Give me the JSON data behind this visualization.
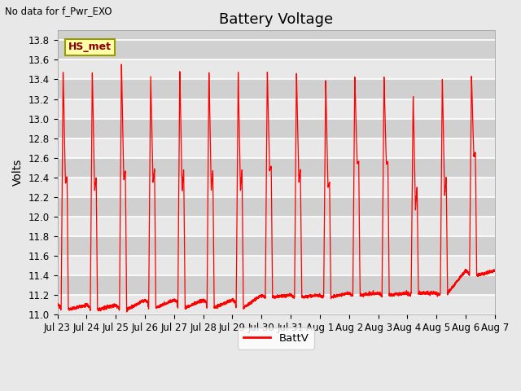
{
  "title": "Battery Voltage",
  "ylabel": "Volts",
  "no_data_label": "No data for f_Pwr_EXO",
  "hs_met_label": "HS_met",
  "legend_label": "BattV",
  "line_color": "red",
  "ylim": [
    11.0,
    13.9
  ],
  "bg_color": "#e8e8e8",
  "plot_bg_light": "#e8e8e8",
  "plot_bg_dark": "#d0d0d0",
  "grid_color": "white",
  "title_fontsize": 13,
  "axis_label_fontsize": 10,
  "tick_fontsize": 8.5,
  "x_tick_labels": [
    "Jul 23",
    "Jul 24",
    "Jul 25",
    "Jul 26",
    "Jul 27",
    "Jul 28",
    "Jul 29",
    "Jul 30",
    "Jul 31",
    "Aug 1",
    "Aug 2",
    "Aug 3",
    "Aug 4",
    "Aug 5",
    "Aug 6",
    "Aug 7"
  ],
  "yticks": [
    11.0,
    11.2,
    11.4,
    11.6,
    11.8,
    12.0,
    12.2,
    12.4,
    12.6,
    12.8,
    13.0,
    13.2,
    13.4,
    13.6,
    13.8
  ],
  "n_days": 15,
  "cycles": [
    {
      "peak": 13.47,
      "dip": 12.35,
      "bump": 12.4,
      "min": 11.1,
      "trough": 11.05
    },
    {
      "peak": 13.47,
      "dip": 12.27,
      "bump": 12.4,
      "min": 11.1,
      "trough": 11.05
    },
    {
      "peak": 13.55,
      "dip": 12.38,
      "bump": 12.47,
      "min": 11.1,
      "trough": 11.05
    },
    {
      "peak": 13.42,
      "dip": 12.35,
      "bump": 12.47,
      "min": 11.15,
      "trough": 11.07
    },
    {
      "peak": 13.47,
      "dip": 12.27,
      "bump": 12.47,
      "min": 11.15,
      "trough": 11.07
    },
    {
      "peak": 13.47,
      "dip": 12.27,
      "bump": 12.47,
      "min": 11.15,
      "trough": 11.07
    },
    {
      "peak": 13.47,
      "dip": 12.27,
      "bump": 12.47,
      "min": 11.15,
      "trough": 11.07
    },
    {
      "peak": 13.47,
      "dip": 12.48,
      "bump": 12.5,
      "min": 11.2,
      "trough": 11.18
    },
    {
      "peak": 13.47,
      "dip": 12.35,
      "bump": 12.48,
      "min": 11.2,
      "trough": 11.18
    },
    {
      "peak": 13.4,
      "dip": 12.3,
      "bump": 12.35,
      "min": 11.2,
      "trough": 11.18
    },
    {
      "peak": 13.42,
      "dip": 12.55,
      "bump": 12.55,
      "min": 11.22,
      "trough": 11.2
    },
    {
      "peak": 13.42,
      "dip": 12.55,
      "bump": 12.55,
      "min": 11.22,
      "trough": 11.2
    },
    {
      "peak": 13.22,
      "dip": 12.08,
      "bump": 12.3,
      "min": 11.22,
      "trough": 11.22
    },
    {
      "peak": 13.4,
      "dip": 12.22,
      "bump": 12.4,
      "min": 11.22,
      "trough": 11.22
    },
    {
      "peak": 13.42,
      "dip": 12.62,
      "bump": 12.65,
      "min": 11.45,
      "trough": 11.4
    }
  ]
}
